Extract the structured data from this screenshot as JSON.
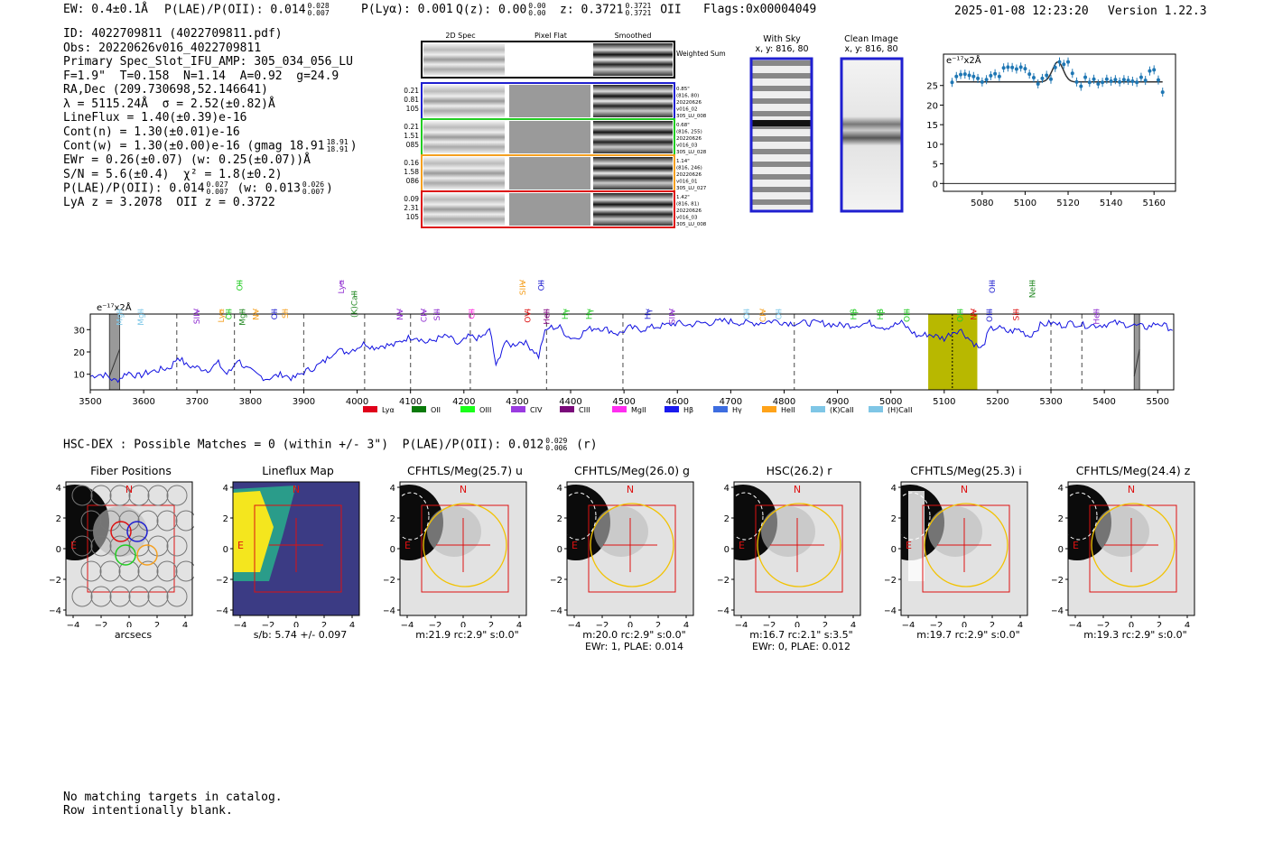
{
  "header": {
    "ew": "EW: 0.4±0.1Å",
    "plae_label": "P(LAE)/P(OII): 0.014",
    "plae_hi": "0.028",
    "plae_lo": "0.007",
    "plya": "P(Lyα): 0.001",
    "qz_label": "Q(z): 0.00",
    "qz_hi": "0.00",
    "qz_lo": "0.00",
    "z_label": "z: 0.3721",
    "z_hi": "0.3721",
    "z_lo": "0.3721",
    "z_line": "OII",
    "flags": "Flags:0x00004049",
    "datetime": "2025-01-08 12:23:20",
    "version": "Version 1.22.3"
  },
  "info": {
    "id": "ID: 4022709811 (4022709811.pdf)",
    "obs": "Obs: 20220626v016_4022709811",
    "primary": "Primary Spec_Slot_IFU_AMP: 305_034_056_LU",
    "params": "F=1.9\"  T=0.158  N=1.14  A=0.92  g=24.9",
    "radec": "RA,Dec (209.730698,52.146641)",
    "lambda": "λ = 5115.24Å  σ = 2.52(±0.82)Å",
    "lineflux": "LineFlux = 1.40(±0.39)e-16",
    "contn": "Cont(n) = 1.30(±0.01)e-16",
    "contw": "Cont(w) = 1.30(±0.00)e-16 (gmag 18.91",
    "gmag_hi": "18.91",
    "gmag_lo": "18.91",
    "ewr": "EWr = 0.26(±0.07) (w: 0.25(±0.07))Å",
    "sn": "S/N = 5.6(±0.4)  χ² = 1.8(±0.2)",
    "plae": "P(LAE)/P(OII): 0.014",
    "plae_hi": "0.027",
    "plae_lo": "0.007",
    "plae_w": "(w: 0.013",
    "plae_w_hi": "0.026",
    "plae_w_lo": "0.007",
    "lya": "LyA z = 3.2078  OII z = 0.3722"
  },
  "spec2d": {
    "col_labels": [
      "2D Spec",
      "Pixel Flat",
      "Smoothed"
    ],
    "weighted": "Weighted Sum",
    "rows": [
      {
        "left": [
          "0.21",
          "0.81",
          "105"
        ],
        "right": [
          "0.85\"",
          "(816, 80)",
          "20220626",
          "v016_02",
          "305_LU_008"
        ],
        "color": "#1f1fd0"
      },
      {
        "left": [
          "0.21",
          "1.51",
          "085"
        ],
        "right": [
          "0.68\"",
          "(816, 255)",
          "20220626",
          "v016_03",
          "305_LU_028"
        ],
        "color": "#22cc22"
      },
      {
        "left": [
          "0.16",
          "1.58",
          "086"
        ],
        "right": [
          "1.14\"",
          "(816, 246)",
          "20220626",
          "v016_01",
          "305_LU_027"
        ],
        "color": "#f5a020"
      },
      {
        "left": [
          "0.09",
          "2.31",
          "105"
        ],
        "right": [
          "1.42\"",
          "(816, 81)",
          "20220626",
          "v016_03",
          "305_LU_008"
        ],
        "color": "#dd1111"
      }
    ]
  },
  "sky": {
    "with_sky": "With Sky",
    "with_sky_xy": "x, y: 816, 80",
    "clean": "Clean Image",
    "clean_xy": "x, y: 816, 80"
  },
  "zoom_chart": {
    "type": "scatter",
    "ylabel": "e⁻¹⁷x2Å",
    "xticks": [
      "5080",
      "5100",
      "5120",
      "5140",
      "5160"
    ],
    "yticks": [
      "0",
      "5",
      "10",
      "15",
      "20",
      "25"
    ],
    "xlim": [
      5062,
      5170
    ],
    "ylim": [
      -2,
      33
    ],
    "x": [
      5066,
      5068,
      5070,
      5072,
      5074,
      5076,
      5078,
      5080,
      5082,
      5084,
      5086,
      5088,
      5090,
      5092,
      5094,
      5096,
      5098,
      5100,
      5102,
      5104,
      5106,
      5108,
      5110,
      5112,
      5114,
      5116,
      5118,
      5120,
      5122,
      5124,
      5126,
      5128,
      5130,
      5132,
      5134,
      5136,
      5138,
      5140,
      5142,
      5144,
      5146,
      5148,
      5150,
      5152,
      5154,
      5156,
      5158,
      5160,
      5162,
      5164
    ],
    "y": [
      25.8,
      27.3,
      27.8,
      27.9,
      27.6,
      27.3,
      26.8,
      25.9,
      26.5,
      27.5,
      28.0,
      27.3,
      29.5,
      29.7,
      29.6,
      29.2,
      29.7,
      29.3,
      27.9,
      27.0,
      25.4,
      26.8,
      27.6,
      26.6,
      29.6,
      31.0,
      30.4,
      31.0,
      28.1,
      25.9,
      24.8,
      27.1,
      25.8,
      26.6,
      25.4,
      25.8,
      26.6,
      26.1,
      26.5,
      25.9,
      26.5,
      26.3,
      26.1,
      25.8,
      27.1,
      26.3,
      28.7,
      29.0,
      26.4,
      23.3
    ],
    "model": {
      "continuum": 25.9,
      "peak": 31.0,
      "center": 5115.24,
      "sigma": 2.52
    }
  },
  "chart_data": {
    "type": "line",
    "ylabel": "e⁻¹⁷x2Å",
    "xlim": [
      3500,
      5530
    ],
    "ylim": [
      3,
      37
    ],
    "xticks": [
      "3500",
      "3600",
      "3700",
      "3800",
      "3900",
      "4000",
      "4100",
      "4200",
      "4300",
      "4400",
      "4500",
      "4600",
      "4700",
      "4800",
      "4900",
      "5000",
      "5100",
      "5200",
      "5300",
      "5400",
      "5500"
    ],
    "yticks": [
      "10",
      "20",
      "30"
    ],
    "anchors": [
      [
        3500,
        9
      ],
      [
        3515,
        10
      ],
      [
        3530,
        9.5
      ],
      [
        3545,
        7
      ],
      [
        3555,
        8
      ],
      [
        3570,
        11
      ],
      [
        3590,
        9
      ],
      [
        3610,
        11
      ],
      [
        3630,
        12
      ],
      [
        3650,
        13
      ],
      [
        3665,
        18
      ],
      [
        3680,
        14
      ],
      [
        3700,
        13
      ],
      [
        3720,
        12
      ],
      [
        3740,
        15
      ],
      [
        3755,
        10
      ],
      [
        3765,
        12
      ],
      [
        3775,
        17
      ],
      [
        3790,
        13
      ],
      [
        3810,
        10
      ],
      [
        3830,
        8
      ],
      [
        3860,
        10
      ],
      [
        3880,
        8
      ],
      [
        3900,
        11
      ],
      [
        3920,
        13
      ],
      [
        3940,
        16
      ],
      [
        3960,
        21
      ],
      [
        3980,
        20
      ],
      [
        4000,
        22
      ],
      [
        4015,
        24
      ],
      [
        4030,
        22
      ],
      [
        4050,
        23
      ],
      [
        4070,
        23
      ],
      [
        4090,
        26
      ],
      [
        4110,
        27
      ],
      [
        4130,
        24
      ],
      [
        4150,
        26
      ],
      [
        4170,
        27
      ],
      [
        4190,
        23
      ],
      [
        4210,
        27
      ],
      [
        4230,
        26
      ],
      [
        4250,
        30
      ],
      [
        4260,
        13
      ],
      [
        4275,
        24
      ],
      [
        4290,
        23
      ],
      [
        4310,
        25
      ],
      [
        4330,
        21
      ],
      [
        4340,
        18
      ],
      [
        4350,
        28
      ],
      [
        4360,
        31
      ],
      [
        4380,
        31
      ],
      [
        4395,
        27
      ],
      [
        4410,
        26
      ],
      [
        4430,
        30
      ],
      [
        4450,
        31
      ],
      [
        4470,
        30
      ],
      [
        4490,
        28
      ],
      [
        4510,
        31
      ],
      [
        4530,
        30
      ],
      [
        4550,
        31
      ],
      [
        4580,
        32
      ],
      [
        4600,
        33
      ],
      [
        4620,
        32
      ],
      [
        4640,
        33
      ],
      [
        4660,
        33
      ],
      [
        4690,
        34
      ],
      [
        4720,
        33
      ],
      [
        4750,
        33
      ],
      [
        4780,
        34
      ],
      [
        4810,
        33
      ],
      [
        4840,
        33
      ],
      [
        4870,
        33
      ],
      [
        4900,
        32
      ],
      [
        4930,
        32
      ],
      [
        4960,
        33
      ],
      [
        4990,
        31
      ],
      [
        5020,
        33
      ],
      [
        5050,
        27
      ],
      [
        5070,
        28
      ],
      [
        5100,
        26
      ],
      [
        5115,
        29
      ],
      [
        5130,
        30
      ],
      [
        5150,
        25
      ],
      [
        5170,
        21
      ],
      [
        5185,
        30
      ],
      [
        5200,
        31
      ],
      [
        5220,
        29
      ],
      [
        5240,
        30
      ],
      [
        5260,
        27
      ],
      [
        5280,
        32
      ],
      [
        5300,
        33
      ],
      [
        5320,
        32
      ],
      [
        5340,
        33
      ],
      [
        5360,
        32
      ],
      [
        5390,
        32
      ],
      [
        5420,
        33
      ],
      [
        5450,
        32
      ],
      [
        5480,
        31
      ],
      [
        5500,
        33
      ],
      [
        5530,
        30
      ]
    ],
    "highlight": {
      "from": 5070,
      "to": 5162,
      "line": 5115.24
    },
    "masked": [
      [
        3536,
        3555
      ],
      [
        5456,
        5466
      ]
    ],
    "vlines": [
      3662,
      3770,
      3900,
      4014,
      4100,
      4212,
      4355,
      4498,
      4819,
      5300,
      5358
    ],
    "line_labels": [
      {
        "name": "MgII",
        "x": 3555,
        "color": "#7fc8e8",
        "row": 2
      },
      {
        "name": "MgII",
        "x": 3595,
        "color": "#7fc8e8",
        "row": 2
      },
      {
        "name": "SIIV",
        "x": 3700,
        "color": "#8e2bd0",
        "row": 2
      },
      {
        "name": "Lyα",
        "x": 3745,
        "color": "#f5a020",
        "row": 2
      },
      {
        "name": "OII",
        "x": 3760,
        "color": "#22cc22",
        "row": 2
      },
      {
        "name": "MgII",
        "x": 3785,
        "color": "#228822",
        "row": 2
      },
      {
        "name": "OII",
        "x": 3780,
        "color": "#22cc22",
        "row": 0
      },
      {
        "name": "NV",
        "x": 3810,
        "color": "#f5a020",
        "row": 2
      },
      {
        "name": "OII",
        "x": 3845,
        "color": "#1f1fd0",
        "row": 2
      },
      {
        "name": "SII",
        "x": 3865,
        "color": "#f5a020",
        "row": 2
      },
      {
        "name": "Lyα",
        "x": 3970,
        "color": "#8e2bd0",
        "row": 0
      },
      {
        "name": "(K)CaII",
        "x": 3995,
        "color": "#228822",
        "row": 1
      },
      {
        "name": "NV",
        "x": 4080,
        "color": "#8e2bd0",
        "row": 2
      },
      {
        "name": "CIV",
        "x": 4125,
        "color": "#8e2bd0",
        "row": 2
      },
      {
        "name": "SiII",
        "x": 4150,
        "color": "#8e2bd0",
        "row": 2
      },
      {
        "name": "CII",
        "x": 4215,
        "color": "#ff22dd",
        "row": 2
      },
      {
        "name": "SIIV",
        "x": 4310,
        "color": "#f5a020",
        "row": 0
      },
      {
        "name": "OVI",
        "x": 4320,
        "color": "#dd1111",
        "row": 2
      },
      {
        "name": "OII",
        "x": 4345,
        "color": "#1f1fd0",
        "row": 0
      },
      {
        "name": "HeII",
        "x": 4355,
        "color": "#800080",
        "row": 2
      },
      {
        "name": "Hγ",
        "x": 4390,
        "color": "#22cc22",
        "row": 2
      },
      {
        "name": "Hγ",
        "x": 4435,
        "color": "#22cc22",
        "row": 2
      },
      {
        "name": "Hγ",
        "x": 4545,
        "color": "#1f1fd0",
        "row": 2
      },
      {
        "name": "SIIV",
        "x": 4590,
        "color": "#8e2bd0",
        "row": 2
      },
      {
        "name": "OII",
        "x": 4730,
        "color": "#7fc8e8",
        "row": 2
      },
      {
        "name": "CIV",
        "x": 4760,
        "color": "#f5a020",
        "row": 2
      },
      {
        "name": "OII",
        "x": 4790,
        "color": "#7fc8e8",
        "row": 2
      },
      {
        "name": "Hβ",
        "x": 4930,
        "color": "#22cc22",
        "row": 2
      },
      {
        "name": "Hβ",
        "x": 4980,
        "color": "#22cc22",
        "row": 2
      },
      {
        "name": "OIII",
        "x": 5030,
        "color": "#22cc22",
        "row": 2
      },
      {
        "name": "OIII",
        "x": 5130,
        "color": "#22cc22",
        "row": 2
      },
      {
        "name": "NV",
        "x": 5155,
        "color": "#dd1111",
        "row": 2
      },
      {
        "name": "OIII",
        "x": 5190,
        "color": "#1f1fd0",
        "row": 0
      },
      {
        "name": "OIII",
        "x": 5185,
        "color": "#1f1fd0",
        "row": 2
      },
      {
        "name": "SiII",
        "x": 5235,
        "color": "#dd1111",
        "row": 2
      },
      {
        "name": "NeIII",
        "x": 5265,
        "color": "#228822",
        "row": 0
      },
      {
        "name": "HeII",
        "x": 5385,
        "color": "#8e2bd0",
        "row": 2
      }
    ],
    "legend": [
      {
        "label": "Lyα",
        "color": "#e0001a"
      },
      {
        "label": "OII",
        "color": "#0a7a0a"
      },
      {
        "label": "OIII",
        "color": "#1aff1a"
      },
      {
        "label": "CIV",
        "color": "#9a3be0"
      },
      {
        "label": "CIII",
        "color": "#7a0a7a"
      },
      {
        "label": "MgII",
        "color": "#ff2ef0"
      },
      {
        "label": "Hβ",
        "color": "#1a1aee"
      },
      {
        "label": "Hγ",
        "color": "#3d6de0"
      },
      {
        "label": "HeII",
        "color": "#ffa31a"
      },
      {
        "label": "(K)CaII",
        "color": "#7fc6e6"
      },
      {
        "label": "(H)CaII",
        "color": "#7fc6e6"
      }
    ]
  },
  "hsc": {
    "line": "HSC-DEX : Possible Matches = 0 (within +/- 3\")  P(LAE)/P(OII): 0.012",
    "hi": "0.029",
    "lo": "0.006",
    "band": "(r)"
  },
  "cutouts": [
    {
      "title": "Fiber Positions",
      "caption": "arcsecs",
      "caption2": ""
    },
    {
      "title": "Lineflux Map",
      "caption": "s/b: 5.74 +/- 0.097",
      "caption2": ""
    },
    {
      "title": "CFHTLS/Meg(25.7) u",
      "caption": "m:21.9 rc:2.9\"  s:0.0\"",
      "caption2": ""
    },
    {
      "title": "CFHTLS/Meg(26.0) g",
      "caption": "m:20.0 rc:2.9\"  s:0.0\"",
      "caption2": "EWr: 1, PLAE: 0.014"
    },
    {
      "title": "HSC(26.2) r",
      "caption": "m:16.7  rc:2.1\"  s:3.5\"",
      "caption2": "EWr: 0, PLAE: 0.012"
    },
    {
      "title": "CFHTLS/Meg(25.3) i",
      "caption": "m:19.7 rc:2.9\"  s:0.0\"",
      "caption2": ""
    },
    {
      "title": "CFHTLS/Meg(24.4) z",
      "caption": "m:19.3 rc:2.9\"  s:0.0\"",
      "caption2": ""
    }
  ],
  "cutout_axis": {
    "xticks": [
      "−4",
      "−2",
      "0",
      "2",
      "4"
    ],
    "yticks": [
      "4",
      "2",
      "0",
      "−2",
      "−4"
    ],
    "n": "N",
    "e": "E"
  },
  "footer": {
    "line1": "No matching targets in catalog.",
    "line2": "Row intentionally blank."
  }
}
